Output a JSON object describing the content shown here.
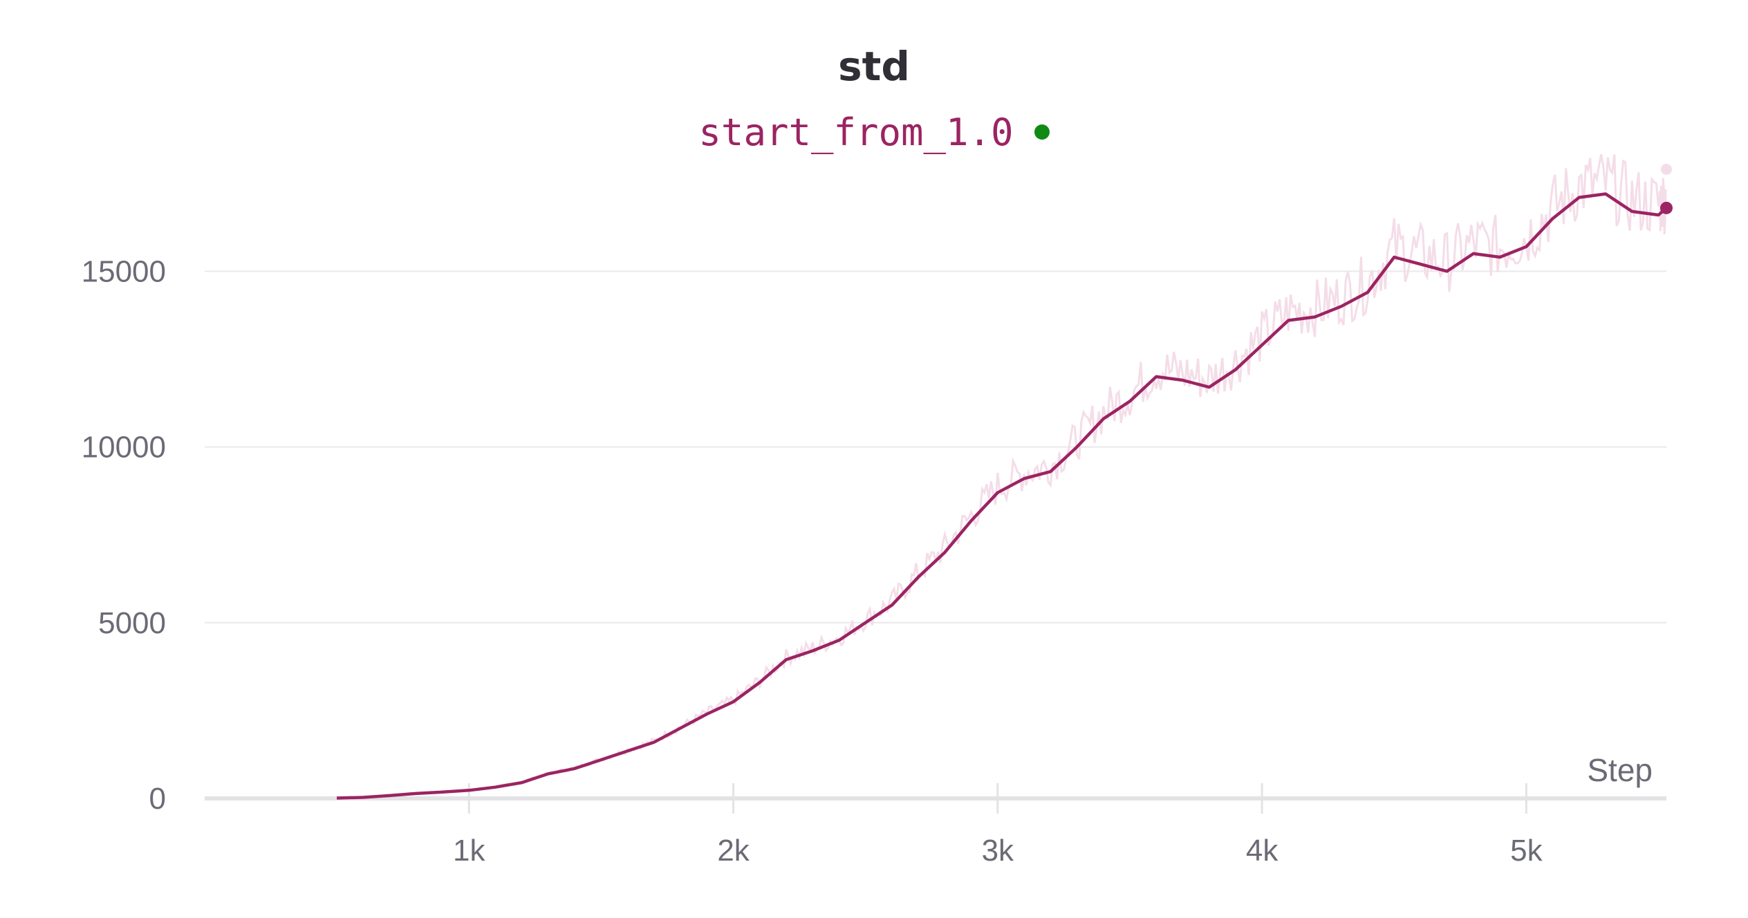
{
  "chart_data": {
    "type": "line",
    "title": "std",
    "xlabel": "Step",
    "ylabel": "",
    "xlim": [
      0,
      5530
    ],
    "ylim": [
      0,
      17800
    ],
    "x_ticks": [
      1000,
      2000,
      3000,
      4000,
      5000
    ],
    "x_tick_labels": [
      "1k",
      "2k",
      "3k",
      "4k",
      "5k"
    ],
    "y_ticks": [
      0,
      5000,
      10000,
      15000
    ],
    "y_tick_labels": [
      "0",
      "5000",
      "10000",
      "15000"
    ],
    "grid": true,
    "legend": "top-center",
    "series": [
      {
        "name": "start_from_1.0",
        "color": "#9b2462",
        "raw_color": "#f4dde8",
        "status_color": "#0f8a14",
        "smoothed": {
          "x": [
            500,
            600,
            700,
            800,
            900,
            1000,
            1100,
            1200,
            1300,
            1400,
            1500,
            1600,
            1700,
            1800,
            1900,
            2000,
            2100,
            2200,
            2300,
            2400,
            2500,
            2600,
            2700,
            2800,
            2900,
            3000,
            3100,
            3200,
            3300,
            3400,
            3500,
            3600,
            3700,
            3800,
            3900,
            4000,
            4100,
            4200,
            4300,
            4400,
            4500,
            4600,
            4700,
            4800,
            4900,
            5000,
            5100,
            5200,
            5300,
            5400,
            5500,
            5530
          ],
          "y": [
            10,
            30,
            80,
            140,
            180,
            230,
            320,
            450,
            700,
            850,
            1100,
            1350,
            1600,
            2000,
            2400,
            2750,
            3300,
            3950,
            4200,
            4500,
            5000,
            5500,
            6300,
            7000,
            7900,
            8700,
            9100,
            9300,
            10000,
            10800,
            11300,
            12000,
            11900,
            11700,
            12200,
            12900,
            13600,
            13700,
            14000,
            14400,
            15400,
            15200,
            15000,
            15500,
            15400,
            15700,
            16500,
            17100,
            17200,
            16700,
            16600,
            16800
          ]
        },
        "raw_end_value": 17900
      }
    ]
  }
}
